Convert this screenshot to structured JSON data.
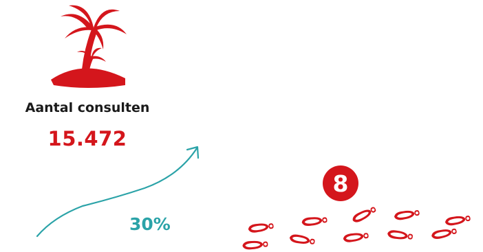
{
  "colors": {
    "accent_red": "#d4161c",
    "teal": "#2ba3a8",
    "text_dark": "#1a1a1a"
  },
  "icons": {
    "island": "palm-island-icon",
    "trend": "trend-arrow-icon",
    "footprints": "footprints-icon"
  },
  "stat": {
    "label": "Aantal consulten",
    "value": "15.472"
  },
  "growth": {
    "percent": "30%"
  },
  "steps": {
    "badge": "8"
  }
}
